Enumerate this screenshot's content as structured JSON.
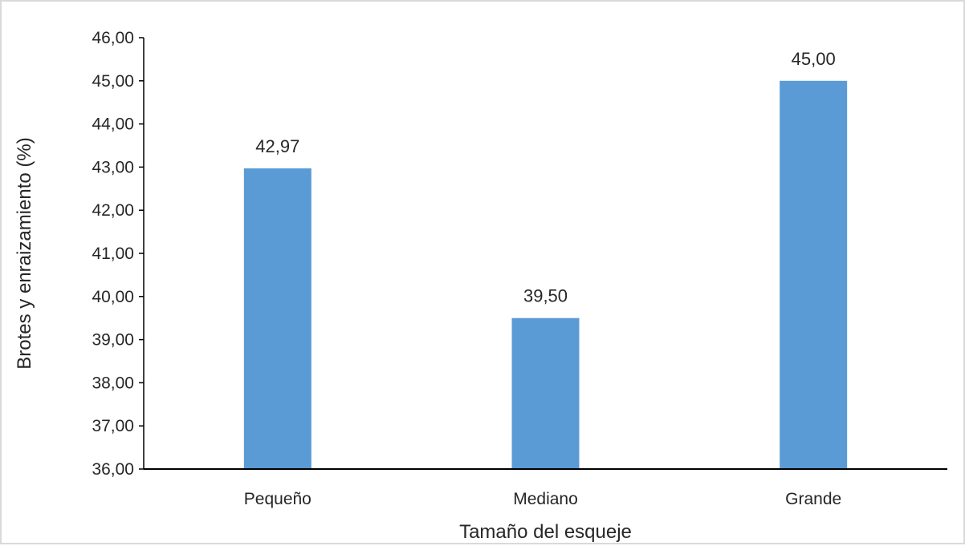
{
  "chart_data": {
    "type": "bar",
    "categories": [
      "Pequeño",
      "Mediano",
      "Grande"
    ],
    "values": [
      42.97,
      39.5,
      45.0
    ],
    "data_labels": [
      "42,97",
      "39,50",
      "45,00"
    ],
    "title": "",
    "xlabel": "Tamaño del esqueje",
    "ylabel": "Brotes y enraizamiento (%)",
    "ylim": [
      36,
      46
    ],
    "yticks": [
      36,
      37,
      38,
      39,
      40,
      41,
      42,
      43,
      44,
      45,
      46
    ],
    "ytick_labels": [
      "36,00",
      "37,00",
      "38,00",
      "39,00",
      "40,00",
      "41,00",
      "42,00",
      "43,00",
      "44,00",
      "45,00",
      "46,00"
    ],
    "bar_color": "#5b9bd5",
    "grid": false,
    "legend": "none"
  }
}
